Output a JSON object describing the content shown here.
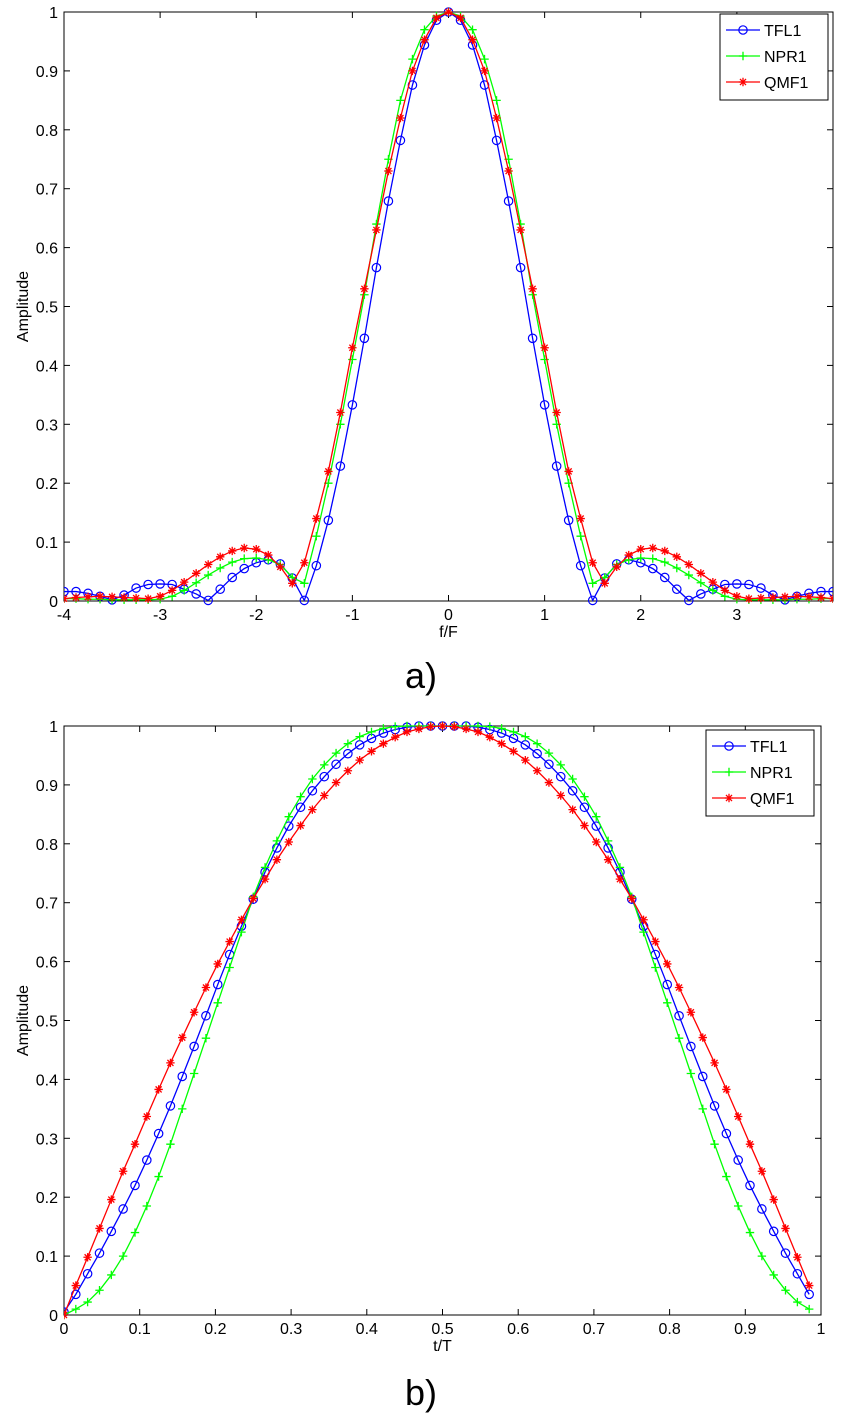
{
  "chart_data": [
    {
      "id": "a",
      "type": "line",
      "caption": "a)",
      "xlabel": "f/F",
      "ylabel": "Amplitude",
      "xlim": [
        -4,
        4
      ],
      "ylim": [
        0,
        1
      ],
      "xticks": [
        -4,
        -3,
        -2,
        -1,
        0,
        1,
        2,
        3
      ],
      "yticks": [
        0,
        0.1,
        0.2,
        0.3,
        0.4,
        0.5,
        0.6,
        0.7,
        0.8,
        0.9,
        1
      ],
      "xtick_labels": [
        "-4",
        "-3",
        "-2",
        "-1",
        "0",
        "1",
        "2",
        "3"
      ],
      "ytick_labels": [
        "0",
        "0.1",
        "0.2",
        "0.3",
        "0.4",
        "0.5",
        "0.6",
        "0.7",
        "0.8",
        "0.9",
        "1"
      ],
      "legend": [
        "TFL1",
        "NPR1",
        "QMF1"
      ],
      "series": [
        {
          "name": "TFL1",
          "color": "#0000ff",
          "marker": "circle",
          "x": [
            -4.0,
            -3.875,
            -3.75,
            -3.625,
            -3.5,
            -3.375,
            -3.25,
            -3.125,
            -3.0,
            -2.875,
            -2.75,
            -2.625,
            -2.5,
            -2.375,
            -2.25,
            -2.125,
            -2.0,
            -1.875,
            -1.75,
            -1.625,
            -1.5,
            -1.375,
            -1.25,
            -1.125,
            -1.0,
            -0.875,
            -0.75,
            -0.625,
            -0.5,
            -0.375,
            -0.25,
            -0.125,
            0.0,
            0.125,
            0.25,
            0.375,
            0.5,
            0.625,
            0.75,
            0.875,
            1.0,
            1.125,
            1.25,
            1.375,
            1.5,
            1.625,
            1.75,
            1.875,
            2.0,
            2.125,
            2.25,
            2.375,
            2.5,
            2.625,
            2.75,
            2.875,
            3.0,
            3.125,
            3.25,
            3.375,
            3.5,
            3.625,
            3.75,
            3.875,
            4.0
          ],
          "y": [
            0.016,
            0.016,
            0.013,
            0.008,
            0.002,
            0.01,
            0.022,
            0.028,
            0.029,
            0.028,
            0.02,
            0.012,
            0.001,
            0.02,
            0.04,
            0.055,
            0.065,
            0.07,
            0.063,
            0.039,
            0.001,
            0.06,
            0.137,
            0.229,
            0.333,
            0.446,
            0.566,
            0.679,
            0.782,
            0.876,
            0.944,
            0.986,
            1.0,
            0.986,
            0.944,
            0.876,
            0.782,
            0.679,
            0.566,
            0.446,
            0.333,
            0.229,
            0.137,
            0.06,
            0.001,
            0.039,
            0.063,
            0.07,
            0.065,
            0.055,
            0.04,
            0.02,
            0.001,
            0.012,
            0.02,
            0.028,
            0.029,
            0.028,
            0.022,
            0.01,
            0.002,
            0.008,
            0.013,
            0.016,
            0.016
          ]
        },
        {
          "name": "NPR1",
          "color": "#00ff00",
          "marker": "plus",
          "x": [
            -4.0,
            -3.875,
            -3.75,
            -3.625,
            -3.5,
            -3.375,
            -3.25,
            -3.125,
            -3.0,
            -2.875,
            -2.75,
            -2.625,
            -2.5,
            -2.375,
            -2.25,
            -2.125,
            -2.0,
            -1.875,
            -1.75,
            -1.625,
            -1.5,
            -1.375,
            -1.25,
            -1.125,
            -1.0,
            -0.875,
            -0.75,
            -0.625,
            -0.5,
            -0.375,
            -0.25,
            -0.125,
            0.0,
            0.125,
            0.25,
            0.375,
            0.5,
            0.625,
            0.75,
            0.875,
            1.0,
            1.125,
            1.25,
            1.375,
            1.5,
            1.625,
            1.75,
            1.875,
            2.0,
            2.125,
            2.25,
            2.375,
            2.5,
            2.625,
            2.75,
            2.875,
            3.0,
            3.125,
            3.25,
            3.375,
            3.5,
            3.625,
            3.75,
            3.875,
            4.0
          ],
          "y": [
            0.004,
            0.004,
            0.003,
            0.003,
            0.002,
            0.002,
            0.002,
            0.002,
            0.003,
            0.008,
            0.018,
            0.031,
            0.044,
            0.056,
            0.066,
            0.072,
            0.073,
            0.07,
            0.062,
            0.04,
            0.03,
            0.11,
            0.2,
            0.3,
            0.41,
            0.52,
            0.64,
            0.75,
            0.85,
            0.92,
            0.97,
            0.993,
            1.0,
            0.993,
            0.97,
            0.92,
            0.85,
            0.75,
            0.64,
            0.52,
            0.41,
            0.3,
            0.2,
            0.11,
            0.03,
            0.04,
            0.062,
            0.07,
            0.073,
            0.072,
            0.066,
            0.056,
            0.044,
            0.031,
            0.018,
            0.008,
            0.003,
            0.002,
            0.002,
            0.002,
            0.002,
            0.003,
            0.003,
            0.004,
            0.004
          ]
        },
        {
          "name": "QMF1",
          "color": "#ff0000",
          "marker": "star",
          "x": [
            -4.0,
            -3.875,
            -3.75,
            -3.625,
            -3.5,
            -3.375,
            -3.25,
            -3.125,
            -3.0,
            -2.875,
            -2.75,
            -2.625,
            -2.5,
            -2.375,
            -2.25,
            -2.125,
            -2.0,
            -1.875,
            -1.75,
            -1.625,
            -1.5,
            -1.375,
            -1.25,
            -1.125,
            -1.0,
            -0.875,
            -0.75,
            -0.625,
            -0.5,
            -0.375,
            -0.25,
            -0.125,
            0.0,
            0.125,
            0.25,
            0.375,
            0.5,
            0.625,
            0.75,
            0.875,
            1.0,
            1.125,
            1.25,
            1.375,
            1.5,
            1.625,
            1.75,
            1.875,
            2.0,
            2.125,
            2.25,
            2.375,
            2.5,
            2.625,
            2.75,
            2.875,
            3.0,
            3.125,
            3.25,
            3.375,
            3.5,
            3.625,
            3.75,
            3.875,
            4.0
          ],
          "y": [
            0.004,
            0.006,
            0.007,
            0.008,
            0.007,
            0.006,
            0.005,
            0.004,
            0.008,
            0.018,
            0.032,
            0.047,
            0.062,
            0.075,
            0.085,
            0.09,
            0.088,
            0.078,
            0.058,
            0.03,
            0.065,
            0.14,
            0.22,
            0.32,
            0.43,
            0.53,
            0.63,
            0.73,
            0.82,
            0.9,
            0.953,
            0.99,
            1.0,
            0.99,
            0.953,
            0.9,
            0.82,
            0.73,
            0.63,
            0.53,
            0.43,
            0.32,
            0.22,
            0.14,
            0.065,
            0.03,
            0.058,
            0.078,
            0.088,
            0.09,
            0.085,
            0.075,
            0.062,
            0.047,
            0.032,
            0.018,
            0.008,
            0.004,
            0.005,
            0.006,
            0.007,
            0.008,
            0.007,
            0.006,
            0.004
          ]
        }
      ]
    },
    {
      "id": "b",
      "type": "line",
      "caption": "b)",
      "xlabel": "t/T",
      "ylabel": "Amplitude",
      "xlim": [
        0,
        1
      ],
      "ylim": [
        0,
        1
      ],
      "xticks": [
        0,
        0.1,
        0.2,
        0.3,
        0.4,
        0.5,
        0.6,
        0.7,
        0.8,
        0.9,
        1
      ],
      "yticks": [
        0,
        0.1,
        0.2,
        0.3,
        0.4,
        0.5,
        0.6,
        0.7,
        0.8,
        0.9,
        1
      ],
      "xtick_labels": [
        "0",
        "0.1",
        "0.2",
        "0.3",
        "0.4",
        "0.5",
        "0.6",
        "0.7",
        "0.8",
        "0.9",
        "1"
      ],
      "ytick_labels": [
        "0",
        "0.1",
        "0.2",
        "0.3",
        "0.4",
        "0.5",
        "0.6",
        "0.7",
        "0.8",
        "0.9",
        "1"
      ],
      "legend": [
        "TFL1",
        "NPR1",
        "QMF1"
      ],
      "series": [
        {
          "name": "TFL1",
          "color": "#0000ff",
          "marker": "circle",
          "x": [
            0.0,
            0.0156,
            0.0312,
            0.0469,
            0.0625,
            0.0781,
            0.0938,
            0.1094,
            0.125,
            0.1406,
            0.1562,
            0.1719,
            0.1875,
            0.2031,
            0.2188,
            0.2344,
            0.25,
            0.2656,
            0.2812,
            0.2969,
            0.3125,
            0.3281,
            0.3438,
            0.3594,
            0.375,
            0.3906,
            0.4062,
            0.4219,
            0.4375,
            0.4531,
            0.4688,
            0.4844,
            0.5,
            0.5156,
            0.5312,
            0.5469,
            0.5625,
            0.5781,
            0.5938,
            0.6094,
            0.625,
            0.6406,
            0.6562,
            0.6719,
            0.6875,
            0.7031,
            0.7188,
            0.7344,
            0.75,
            0.7656,
            0.7812,
            0.7969,
            0.8125,
            0.8281,
            0.8438,
            0.8594,
            0.875,
            0.8906,
            0.9062,
            0.9219,
            0.9375,
            0.9531,
            0.9688,
            0.9844
          ],
          "y": [
            0.005,
            0.035,
            0.07,
            0.105,
            0.142,
            0.18,
            0.22,
            0.263,
            0.308,
            0.355,
            0.405,
            0.456,
            0.508,
            0.561,
            0.612,
            0.66,
            0.706,
            0.752,
            0.793,
            0.83,
            0.862,
            0.89,
            0.914,
            0.935,
            0.953,
            0.968,
            0.979,
            0.988,
            0.994,
            0.998,
            1.0,
            1.0,
            1.0,
            1.0,
            1.0,
            0.998,
            0.994,
            0.988,
            0.979,
            0.968,
            0.953,
            0.935,
            0.914,
            0.89,
            0.862,
            0.83,
            0.793,
            0.752,
            0.706,
            0.66,
            0.612,
            0.561,
            0.508,
            0.456,
            0.405,
            0.355,
            0.308,
            0.263,
            0.22,
            0.18,
            0.142,
            0.105,
            0.07,
            0.035
          ]
        },
        {
          "name": "NPR1",
          "color": "#00ff00",
          "marker": "plus",
          "x": [
            0.0,
            0.0156,
            0.0312,
            0.0469,
            0.0625,
            0.0781,
            0.0938,
            0.1094,
            0.125,
            0.1406,
            0.1562,
            0.1719,
            0.1875,
            0.2031,
            0.2188,
            0.2344,
            0.25,
            0.2656,
            0.2812,
            0.2969,
            0.3125,
            0.3281,
            0.3438,
            0.3594,
            0.375,
            0.3906,
            0.4062,
            0.4219,
            0.4375,
            0.4531,
            0.4688,
            0.4844,
            0.5,
            0.5156,
            0.5312,
            0.5469,
            0.5625,
            0.5781,
            0.5938,
            0.6094,
            0.625,
            0.6406,
            0.6562,
            0.6719,
            0.6875,
            0.7031,
            0.7188,
            0.7344,
            0.75,
            0.7656,
            0.7812,
            0.7969,
            0.8125,
            0.8281,
            0.8438,
            0.8594,
            0.875,
            0.8906,
            0.9062,
            0.9219,
            0.9375,
            0.9531,
            0.9688,
            0.9844
          ],
          "y": [
            0.0,
            0.01,
            0.022,
            0.042,
            0.068,
            0.1,
            0.14,
            0.185,
            0.235,
            0.29,
            0.35,
            0.41,
            0.47,
            0.53,
            0.59,
            0.65,
            0.71,
            0.76,
            0.805,
            0.846,
            0.88,
            0.91,
            0.934,
            0.954,
            0.97,
            0.982,
            0.99,
            0.996,
            0.999,
            1.0,
            1.0,
            1.0,
            1.0,
            1.0,
            1.0,
            1.0,
            0.999,
            0.996,
            0.99,
            0.982,
            0.97,
            0.954,
            0.934,
            0.91,
            0.88,
            0.846,
            0.805,
            0.76,
            0.71,
            0.65,
            0.59,
            0.53,
            0.47,
            0.41,
            0.35,
            0.29,
            0.235,
            0.185,
            0.14,
            0.1,
            0.068,
            0.042,
            0.022,
            0.01
          ]
        },
        {
          "name": "QMF1",
          "color": "#ff0000",
          "marker": "star",
          "x": [
            0.0,
            0.0156,
            0.0312,
            0.0469,
            0.0625,
            0.0781,
            0.0938,
            0.1094,
            0.125,
            0.1406,
            0.1562,
            0.1719,
            0.1875,
            0.2031,
            0.2188,
            0.2344,
            0.25,
            0.2656,
            0.2812,
            0.2969,
            0.3125,
            0.3281,
            0.3438,
            0.3594,
            0.375,
            0.3906,
            0.4062,
            0.4219,
            0.4375,
            0.4531,
            0.4688,
            0.4844,
            0.5,
            0.5156,
            0.5312,
            0.5469,
            0.5625,
            0.5781,
            0.5938,
            0.6094,
            0.625,
            0.6406,
            0.6562,
            0.6719,
            0.6875,
            0.7031,
            0.7188,
            0.7344,
            0.75,
            0.7656,
            0.7812,
            0.7969,
            0.8125,
            0.8281,
            0.8438,
            0.8594,
            0.875,
            0.8906,
            0.9062,
            0.9219,
            0.9375,
            0.9531,
            0.9688,
            0.9844
          ],
          "y": [
            0.0,
            0.05,
            0.098,
            0.147,
            0.196,
            0.244,
            0.29,
            0.337,
            0.383,
            0.428,
            0.471,
            0.514,
            0.556,
            0.596,
            0.634,
            0.671,
            0.707,
            0.74,
            0.773,
            0.803,
            0.831,
            0.858,
            0.882,
            0.904,
            0.924,
            0.942,
            0.957,
            0.97,
            0.981,
            0.99,
            0.995,
            0.999,
            1.0,
            0.999,
            0.995,
            0.99,
            0.981,
            0.97,
            0.957,
            0.942,
            0.924,
            0.904,
            0.882,
            0.858,
            0.831,
            0.803,
            0.773,
            0.74,
            0.707,
            0.671,
            0.634,
            0.596,
            0.556,
            0.514,
            0.471,
            0.428,
            0.383,
            0.337,
            0.29,
            0.244,
            0.196,
            0.147,
            0.098,
            0.05
          ]
        }
      ]
    }
  ]
}
